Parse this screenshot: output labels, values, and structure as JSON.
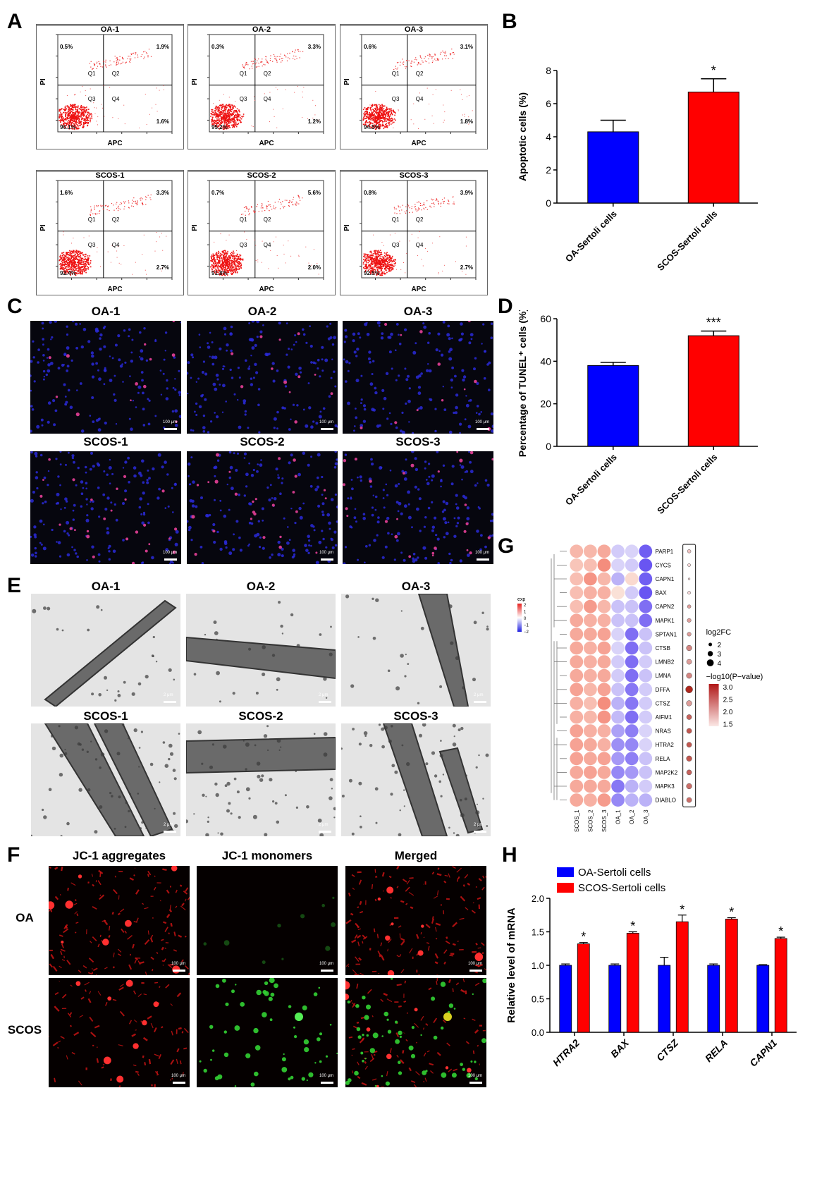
{
  "panels": {
    "A": {
      "label": "A",
      "plots": [
        {
          "title": "OA-1",
          "q1": "0.5%",
          "q2": "1.9%",
          "q3": "96.1%",
          "q4": "1.6%"
        },
        {
          "title": "OA-2",
          "q1": "0.3%",
          "q2": "3.3%",
          "q3": "95.2%",
          "q4": "1.2%"
        },
        {
          "title": "OA-3",
          "q1": "0.6%",
          "q2": "3.1%",
          "q3": "94.5%",
          "q4": "1.8%"
        },
        {
          "title": "SCOS-1",
          "q1": "1.6%",
          "q2": "3.3%",
          "q3": "92.4%",
          "q4": "2.7%"
        },
        {
          "title": "SCOS-2",
          "q1": "0.7%",
          "q2": "5.6%",
          "q3": "91.8%",
          "q4": "2.0%"
        },
        {
          "title": "SCOS-3",
          "q1": "0.8%",
          "q2": "3.9%",
          "q3": "92.5%",
          "q4": "2.7%"
        }
      ],
      "xlabel": "APC",
      "ylabel": "PI",
      "quadrants": [
        "Q1",
        "Q2",
        "Q3",
        "Q4"
      ]
    },
    "B": {
      "label": "B"
    },
    "C": {
      "label": "C",
      "titles": [
        "OA-1",
        "OA-2",
        "OA-3",
        "SCOS-1",
        "SCOS-2",
        "SCOS-3"
      ],
      "scale": "100 μm"
    },
    "D": {
      "label": "D"
    },
    "E": {
      "label": "E",
      "titles": [
        "OA-1",
        "OA-2",
        "OA-3",
        "SCOS-1",
        "SCOS-2",
        "SCOS-3"
      ],
      "scale": "2 μm"
    },
    "F": {
      "label": "F",
      "cols": [
        "JC-1 aggregates",
        "JC-1 monomers",
        "Merged"
      ],
      "rows": [
        "OA",
        "SCOS"
      ],
      "scale": "100 μm"
    },
    "G": {
      "label": "G"
    },
    "H": {
      "label": "H"
    }
  },
  "chart_data": [
    {
      "id": "B",
      "type": "bar",
      "categories": [
        "OA-Sertoli cells",
        "SCOS-Sertoli cells"
      ],
      "values": [
        4.3,
        6.7
      ],
      "errors": [
        0.7,
        0.8
      ],
      "colors": [
        "#0000ff",
        "#ff0000"
      ],
      "ylabel": "Apoptotic cells (%)",
      "ylim": [
        0,
        8
      ],
      "yticks": [
        0,
        2,
        4,
        6,
        8
      ],
      "significance": [
        "",
        "*"
      ]
    },
    {
      "id": "D",
      "type": "bar",
      "categories": [
        "OA-Sertoli cells",
        "SCOS-Sertoli cells"
      ],
      "values": [
        38,
        52
      ],
      "errors": [
        1.5,
        2.2
      ],
      "colors": [
        "#0000ff",
        "#ff0000"
      ],
      "ylabel": "Percentage of TUNEL⁺ cells (%)",
      "ylim": [
        0,
        60
      ],
      "yticks": [
        0,
        20,
        40,
        60
      ],
      "significance": [
        "",
        "***"
      ]
    },
    {
      "id": "G",
      "type": "heatmap",
      "columns": [
        "SCOS_1",
        "SCOS_2",
        "SCOS_3",
        "OA_1",
        "OA_2",
        "OA_3"
      ],
      "rows": [
        "PARP1",
        "CYCS",
        "CAPN1",
        "BAX",
        "CAPN2",
        "MAPK1",
        "SPTAN1",
        "CTSB",
        "LMNB2",
        "LMNA",
        "DFFA",
        "CTSZ",
        "AIFM1",
        "NRAS",
        "HTRA2",
        "RELA",
        "MAP2K2",
        "MAPK3",
        "DIABLO"
      ],
      "values": [
        [
          0.6,
          0.6,
          0.8,
          -0.3,
          -0.2,
          -1.6
        ],
        [
          0.4,
          0.5,
          1.2,
          -0.2,
          -0.3,
          -1.7
        ],
        [
          0.5,
          1.1,
          0.6,
          -0.6,
          0.1,
          -1.6
        ],
        [
          0.5,
          0.7,
          0.7,
          0.0,
          -0.3,
          -1.7
        ],
        [
          0.5,
          1.0,
          0.6,
          -0.4,
          -0.4,
          -1.4
        ],
        [
          0.8,
          0.7,
          0.7,
          -0.4,
          -0.4,
          -1.4
        ],
        [
          0.8,
          0.8,
          0.9,
          -0.2,
          -1.4,
          -0.4
        ],
        [
          0.8,
          0.7,
          0.9,
          -0.2,
          -1.4,
          -0.4
        ],
        [
          0.8,
          0.7,
          0.8,
          -0.3,
          -1.4,
          -0.3
        ],
        [
          0.8,
          0.7,
          0.8,
          -0.3,
          -1.4,
          -0.4
        ],
        [
          0.9,
          0.6,
          0.9,
          -0.4,
          -1.3,
          -0.3
        ],
        [
          0.7,
          0.5,
          1.2,
          -0.6,
          -1.3,
          -0.3
        ],
        [
          0.7,
          0.6,
          1.1,
          -0.5,
          -1.4,
          -0.3
        ],
        [
          0.9,
          0.7,
          0.7,
          -0.8,
          -1.2,
          -0.2
        ],
        [
          0.9,
          0.8,
          0.7,
          -1.0,
          -1.1,
          -0.2
        ],
        [
          0.9,
          0.8,
          0.9,
          -0.9,
          -1.2,
          -0.4
        ],
        [
          0.8,
          0.9,
          0.8,
          -1.1,
          -0.9,
          -0.4
        ],
        [
          0.8,
          0.8,
          0.8,
          -1.3,
          -0.6,
          -0.3
        ],
        [
          0.8,
          0.7,
          1.0,
          -1.1,
          -0.6,
          -0.6
        ]
      ],
      "dots_log2fc": [
        1.8,
        1.6,
        1.0,
        1.6,
        1.8,
        2.0,
        2.0,
        2.8,
        2.6,
        2.8,
        3.6,
        2.8,
        2.6,
        2.6,
        2.6,
        2.8,
        2.6,
        2.8,
        2.6
      ],
      "dots_neglog10p": [
        1.7,
        1.5,
        1.5,
        1.5,
        2.0,
        2.0,
        2.0,
        2.2,
        2.0,
        2.2,
        3.0,
        2.0,
        2.5,
        2.6,
        2.6,
        2.6,
        2.5,
        2.4,
        2.4
      ],
      "colorbar": {
        "title": "exp",
        "ticks": [
          "2",
          "1",
          "0",
          "−1",
          "−2"
        ]
      },
      "size_legend": {
        "title": "log2FC",
        "ticks": [
          "2",
          "3",
          "4"
        ]
      },
      "p_legend": {
        "title": "−log10(P−value)",
        "ticks": [
          "3.0",
          "2.5",
          "2.0",
          "1.5"
        ]
      }
    },
    {
      "id": "H",
      "type": "bar",
      "categories": [
        "HTRA2",
        "BAX",
        "CTSZ",
        "RELA",
        "CAPN1"
      ],
      "series": [
        {
          "name": "OA-Sertoli cells",
          "values": [
            1.0,
            1.0,
            1.0,
            1.0,
            1.0
          ],
          "errors": [
            0.02,
            0.02,
            0.12,
            0.02,
            0.01
          ],
          "color": "#0000ff"
        },
        {
          "name": "SCOS-Sertoli cells",
          "values": [
            1.32,
            1.48,
            1.65,
            1.69,
            1.4
          ],
          "errors": [
            0.02,
            0.02,
            0.1,
            0.02,
            0.02
          ],
          "color": "#ff0000"
        }
      ],
      "ylabel": "Relative level of mRNA",
      "ylim": [
        0,
        2.0
      ],
      "yticks": [
        "0.0",
        "0.5",
        "1.0",
        "1.5",
        "2.0"
      ],
      "significance": [
        "*",
        "*",
        "*",
        "*",
        "*"
      ]
    }
  ]
}
